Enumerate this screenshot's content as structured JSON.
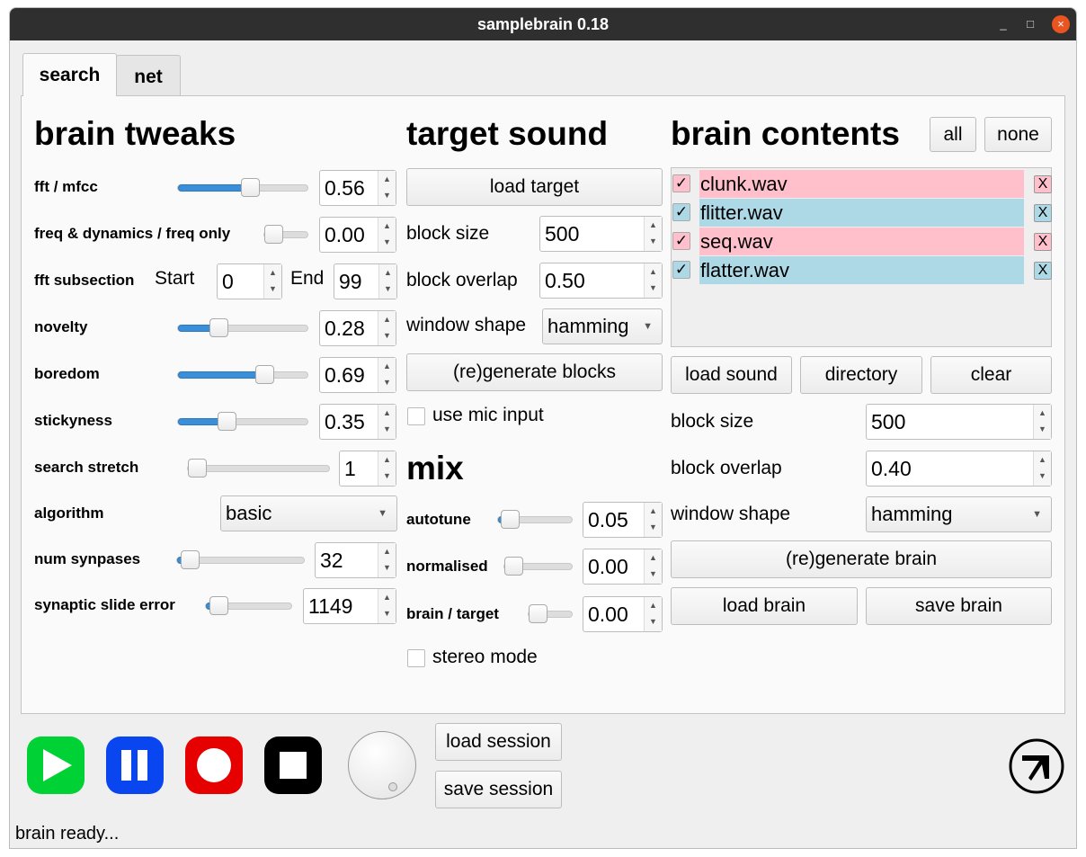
{
  "window": {
    "title": "samplebrain 0.18",
    "minimize": "_",
    "maximize": "□",
    "close": "×"
  },
  "tabs": [
    {
      "label": "search",
      "active": true
    },
    {
      "label": "net",
      "active": false
    }
  ],
  "brain_tweaks": {
    "heading": "brain tweaks",
    "fft_mfcc": {
      "label": "fft / mfcc",
      "value": "0.56",
      "slider": 0.56
    },
    "freq_dynamics": {
      "label": "freq & dynamics / freq only",
      "value": "0.00",
      "slider": 0
    },
    "fft_subsection": {
      "label": "fft subsection",
      "start_label": "Start",
      "start": "0",
      "end_label": "End",
      "end": "99"
    },
    "novelty": {
      "label": "novelty",
      "value": "0.28",
      "slider": 0.28
    },
    "boredom": {
      "label": "boredom",
      "value": "0.69",
      "slider": 0.69
    },
    "stickyness": {
      "label": "stickyness",
      "value": "0.35",
      "slider": 0.35
    },
    "search_stretch": {
      "label": "search stretch",
      "value": "1",
      "slider": 0
    },
    "algorithm": {
      "label": "algorithm",
      "value": "basic"
    },
    "num_synapses": {
      "label": "num synpases",
      "value": "32",
      "slider": 0.03
    },
    "synaptic_slide_error": {
      "label": "synaptic slide error",
      "value": "1149",
      "slider": 0.05
    }
  },
  "target_sound": {
    "heading": "target sound",
    "load_target": "load target",
    "block_size_label": "block size",
    "block_size": "500",
    "block_overlap_label": "block overlap",
    "block_overlap": "0.50",
    "window_shape_label": "window shape",
    "window_shape": "hamming",
    "regenerate": "(re)generate blocks",
    "mic_label": "use mic input"
  },
  "mix": {
    "heading": "mix",
    "autotune": {
      "label": "autotune",
      "value": "0.05",
      "slider": 0.05
    },
    "normalised": {
      "label": "normalised",
      "value": "0.00",
      "slider": 0
    },
    "brain_target": {
      "label": "brain / target",
      "value": "0.00",
      "slider": 0
    },
    "stereo_label": "stereo mode"
  },
  "brain_contents": {
    "heading": "brain contents",
    "all": "all",
    "none": "none",
    "items": [
      {
        "name": "clunk.wav",
        "checked": true,
        "color": "#ffc0cb"
      },
      {
        "name": "flitter.wav",
        "checked": true,
        "color": "#add8e6"
      },
      {
        "name": "seq.wav",
        "checked": true,
        "color": "#ffc0cb"
      },
      {
        "name": "flatter.wav",
        "checked": true,
        "color": "#add8e6"
      }
    ],
    "check": "✓",
    "remove": "X",
    "load_sound": "load sound",
    "directory": "directory",
    "clear": "clear",
    "block_size_label": "block size",
    "block_size": "500",
    "block_overlap_label": "block overlap",
    "block_overlap": "0.40",
    "window_shape_label": "window shape",
    "window_shape": "hamming",
    "regenerate": "(re)generate brain",
    "load_brain": "load brain",
    "save_brain": "save brain"
  },
  "transport": {
    "play_color": "#00d235",
    "pause_color": "#0a46f0",
    "record_color": "#e60000",
    "stop_color": "#000000",
    "load_session": "load session",
    "save_session": "save session"
  },
  "status": "brain ready..."
}
